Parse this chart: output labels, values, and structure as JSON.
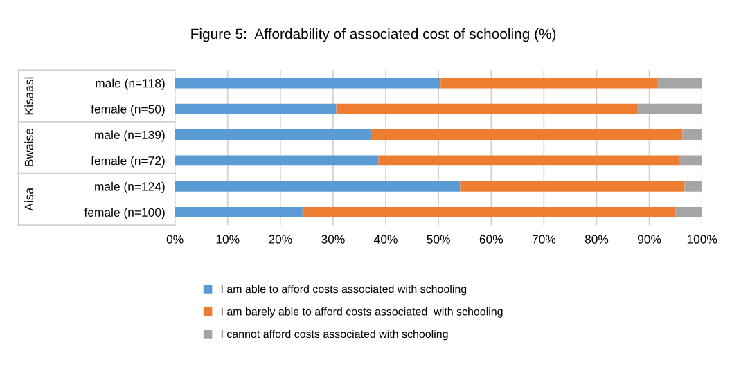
{
  "chart_data": {
    "type": "bar",
    "orientation": "horizontal",
    "stacked": true,
    "title": "Figure 5:  Affordability of associated cost of schooling (%)",
    "categories": [
      "male (n=118)",
      "female (n=50)",
      "male (n=139)",
      "female (n=72)",
      "male (n=124)",
      "female (n=100)"
    ],
    "annotations": [
      "Kisaasi",
      "Bwaise",
      "Aisa"
    ],
    "series": [
      {
        "name": "I am able to afford costs associated with schooling",
        "color": "#5b9bd5",
        "values": [
          50.4,
          30.6,
          37.1,
          38.6,
          54.1,
          24.2
        ]
      },
      {
        "name": "I am barely able to afford costs associated  with schooling",
        "color": "#ed7d31",
        "values": [
          41.0,
          57.2,
          59.2,
          57.1,
          42.6,
          70.8
        ]
      },
      {
        "name": "I cannot afford costs associated with schooling",
        "color": "#a5a5a5",
        "values": [
          8.6,
          12.2,
          3.7,
          4.3,
          3.3,
          5.0
        ]
      }
    ],
    "xlim": [
      0,
      100
    ],
    "xticks": [
      {
        "value": 0,
        "label": "0%"
      },
      {
        "value": 10,
        "label": "10%"
      },
      {
        "value": 20,
        "label": "20%"
      },
      {
        "value": 30,
        "label": "30%"
      },
      {
        "value": 40,
        "label": "40%"
      },
      {
        "value": 50,
        "label": "50%"
      },
      {
        "value": 60,
        "label": "60%"
      },
      {
        "value": 70,
        "label": "70%"
      },
      {
        "value": 80,
        "label": "80%"
      },
      {
        "value": 90,
        "label": "90%"
      },
      {
        "value": 100,
        "label": "100%"
      }
    ],
    "grid": "x",
    "legend": "bottom"
  }
}
